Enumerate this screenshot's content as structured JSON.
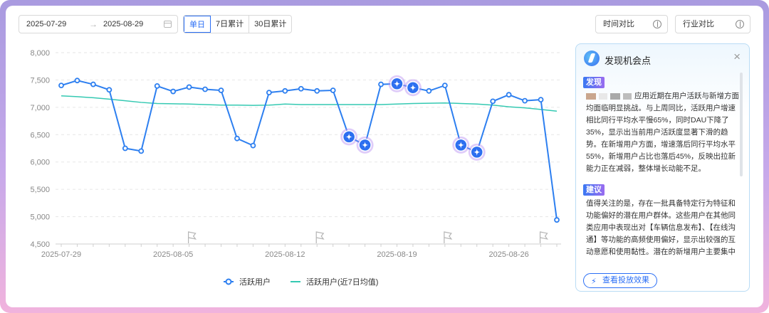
{
  "toolbar": {
    "start_date": "2025-07-29",
    "end_date": "2025-08-29",
    "range_arrow": "→",
    "tabs": [
      "单日",
      "7日累计",
      "30日累计"
    ],
    "active_tab": "单日",
    "time_compare": "时间对比",
    "industry_compare": "行业对比"
  },
  "chart_data": {
    "type": "line",
    "x": [
      "2025-07-29",
      "2025-07-30",
      "2025-07-31",
      "2025-08-01",
      "2025-08-02",
      "2025-08-03",
      "2025-08-04",
      "2025-08-05",
      "2025-08-06",
      "2025-08-07",
      "2025-08-08",
      "2025-08-09",
      "2025-08-10",
      "2025-08-11",
      "2025-08-12",
      "2025-08-13",
      "2025-08-14",
      "2025-08-15",
      "2025-08-16",
      "2025-08-17",
      "2025-08-18",
      "2025-08-19",
      "2025-08-20",
      "2025-08-21",
      "2025-08-22",
      "2025-08-23",
      "2025-08-24",
      "2025-08-25",
      "2025-08-26",
      "2025-08-27",
      "2025-08-28",
      "2025-08-29"
    ],
    "series": [
      {
        "name": "活跃用户",
        "color": "#2d7ff0",
        "values": [
          7400,
          7490,
          7420,
          7320,
          6250,
          6200,
          7390,
          7290,
          7370,
          7330,
          7310,
          6430,
          6300,
          7270,
          7300,
          7340,
          7300,
          7310,
          6460,
          6310,
          7420,
          7430,
          7360,
          7300,
          7400,
          6310,
          6180,
          7110,
          7230,
          7120,
          7140,
          4940
        ]
      },
      {
        "name": "活跃用户(近7日均值)",
        "color": "#35c9b2",
        "values": [
          7210,
          7195,
          7175,
          7150,
          7120,
          7090,
          7070,
          7065,
          7060,
          7050,
          7040,
          7040,
          7035,
          7040,
          7060,
          7050,
          7050,
          7050,
          7050,
          7050,
          7050,
          7060,
          7070,
          7075,
          7080,
          7070,
          7060,
          7040,
          7010,
          6990,
          6960,
          6930
        ]
      }
    ],
    "highlighted_indices": [
      18,
      19,
      21,
      22,
      25,
      26
    ],
    "flag_indices": [
      8,
      16,
      24,
      30
    ],
    "xticks": [
      "2025-07-29",
      "2025-08-05",
      "2025-08-12",
      "2025-08-19",
      "2025-08-26"
    ],
    "yticks": [
      "8,000",
      "7,500",
      "7,000",
      "6,500",
      "6,000",
      "5,500",
      "5,000",
      "4,500"
    ],
    "ylim": [
      4500,
      8000
    ],
    "grid": true,
    "legend_position": "bottom"
  },
  "panel": {
    "title": "发现机会点",
    "close": "×",
    "found_tag": "发现",
    "found_text": "应用近期在用户活跃与新增方面均面临明显挑战。与上周同比，活跃用户增速相比同行平均水平慢65%，同时DAU下降了35%，显示出当前用户活跃度显著下滑的趋势。在新增用户方面，增速落后同行平均水平55%，新增用户占比也落后45%，反映出拉新能力正在减弱，整体增长动能不足。",
    "suggest_tag": "建议",
    "suggest_text": "值得关注的是，存在一批具备特定行为特征和功能偏好的潜在用户群体。这些用户在其他同类应用中表现出对【车辆信息发布】、【在线沟通】等功能的高频使用偏好，显示出较强的互动意愿和使用黏性。潜在的新增用户主要集中",
    "button": "查看投放效果",
    "button_icon": "⚡"
  }
}
